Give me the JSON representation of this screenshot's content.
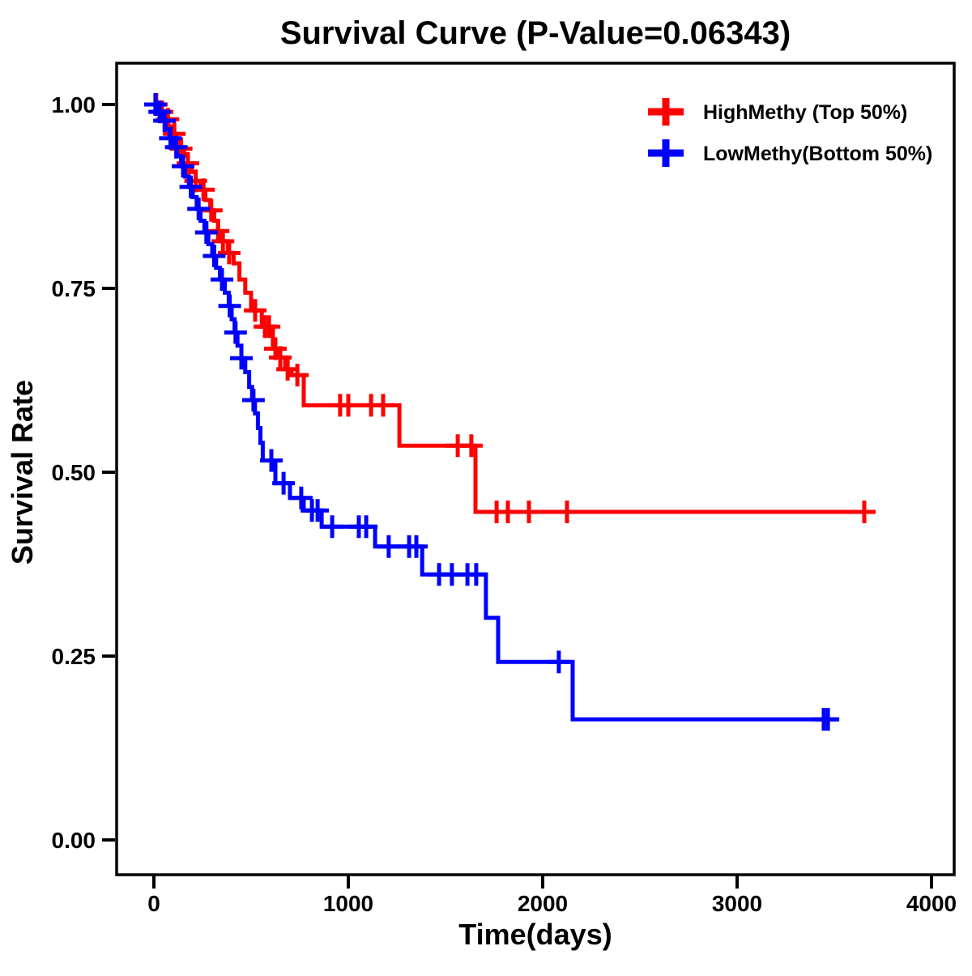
{
  "chart_data": {
    "type": "line",
    "subtype": "kaplan-meier-survival-step",
    "title": "Survival Curve (P-Value=0.06343)",
    "p_value": "0.06343",
    "xlabel": "Time(days)",
    "ylabel": "Survival Rate",
    "xticks": [
      0,
      1000,
      2000,
      3000,
      4000
    ],
    "yticks": [
      0,
      0.25,
      0.5,
      0.75,
      1
    ],
    "xlim": [
      -192,
      4117
    ],
    "ylim": [
      -0.047,
      1.056
    ],
    "grid": false,
    "legend_position": "top-right-inside",
    "series": [
      {
        "name": "HighMethy (Top 50%)",
        "color": "#FF0000",
        "end_time": 3700,
        "steps": [
          [
            0,
            1.0
          ],
          [
            30,
            0.99
          ],
          [
            55,
            0.98
          ],
          [
            75,
            0.97
          ],
          [
            95,
            0.96
          ],
          [
            115,
            0.95
          ],
          [
            135,
            0.94
          ],
          [
            155,
            0.93
          ],
          [
            175,
            0.92
          ],
          [
            195,
            0.908
          ],
          [
            215,
            0.896
          ],
          [
            240,
            0.884
          ],
          [
            265,
            0.87
          ],
          [
            290,
            0.856
          ],
          [
            310,
            0.842
          ],
          [
            330,
            0.828
          ],
          [
            350,
            0.814
          ],
          [
            380,
            0.798
          ],
          [
            410,
            0.784
          ],
          [
            440,
            0.762
          ],
          [
            470,
            0.744
          ],
          [
            500,
            0.72
          ],
          [
            555,
            0.698
          ],
          [
            612,
            0.668
          ],
          [
            646,
            0.656
          ],
          [
            675,
            0.64
          ],
          [
            708,
            0.632
          ],
          [
            771,
            0.591
          ],
          [
            1263,
            0.536
          ],
          [
            1654,
            0.446
          ]
        ],
        "censor_times": [
          12,
          42,
          72,
          105,
          140,
          175,
          215,
          255,
          295,
          330,
          355,
          387,
          521,
          571,
          592,
          625,
          650,
          688,
          738,
          958,
          1000,
          1117,
          1179,
          1563,
          1633,
          1763,
          1821,
          1929,
          2125,
          3654
        ]
      },
      {
        "name": "LowMethy(Bottom 50%)",
        "color": "#0000FF",
        "end_time": 3520,
        "steps": [
          [
            0,
            1.0
          ],
          [
            20,
            0.99
          ],
          [
            40,
            0.978
          ],
          [
            60,
            0.966
          ],
          [
            80,
            0.954
          ],
          [
            100,
            0.942
          ],
          [
            120,
            0.93
          ],
          [
            140,
            0.916
          ],
          [
            160,
            0.902
          ],
          [
            180,
            0.888
          ],
          [
            200,
            0.874
          ],
          [
            220,
            0.858
          ],
          [
            240,
            0.842
          ],
          [
            260,
            0.826
          ],
          [
            280,
            0.81
          ],
          [
            300,
            0.794
          ],
          [
            320,
            0.778
          ],
          [
            340,
            0.762
          ],
          [
            365,
            0.744
          ],
          [
            385,
            0.726
          ],
          [
            400,
            0.708
          ],
          [
            415,
            0.69
          ],
          [
            430,
            0.672
          ],
          [
            450,
            0.655
          ],
          [
            470,
            0.636
          ],
          [
            490,
            0.616
          ],
          [
            505,
            0.598
          ],
          [
            520,
            0.58
          ],
          [
            535,
            0.56
          ],
          [
            548,
            0.54
          ],
          [
            560,
            0.516
          ],
          [
            625,
            0.485
          ],
          [
            700,
            0.465
          ],
          [
            771,
            0.448
          ],
          [
            863,
            0.426
          ],
          [
            1138,
            0.399
          ],
          [
            1380,
            0.361
          ],
          [
            1708,
            0.302
          ],
          [
            1771,
            0.242
          ],
          [
            2154,
            0.164
          ]
        ],
        "censor_times": [
          8,
          30,
          55,
          85,
          115,
          150,
          190,
          230,
          270,
          310,
          350,
          390,
          420,
          450,
          512,
          604,
          667,
          758,
          813,
          842,
          917,
          1054,
          1092,
          1208,
          1313,
          1350,
          1467,
          1533,
          1613,
          1658,
          2083,
          3446,
          3467
        ]
      }
    ]
  }
}
